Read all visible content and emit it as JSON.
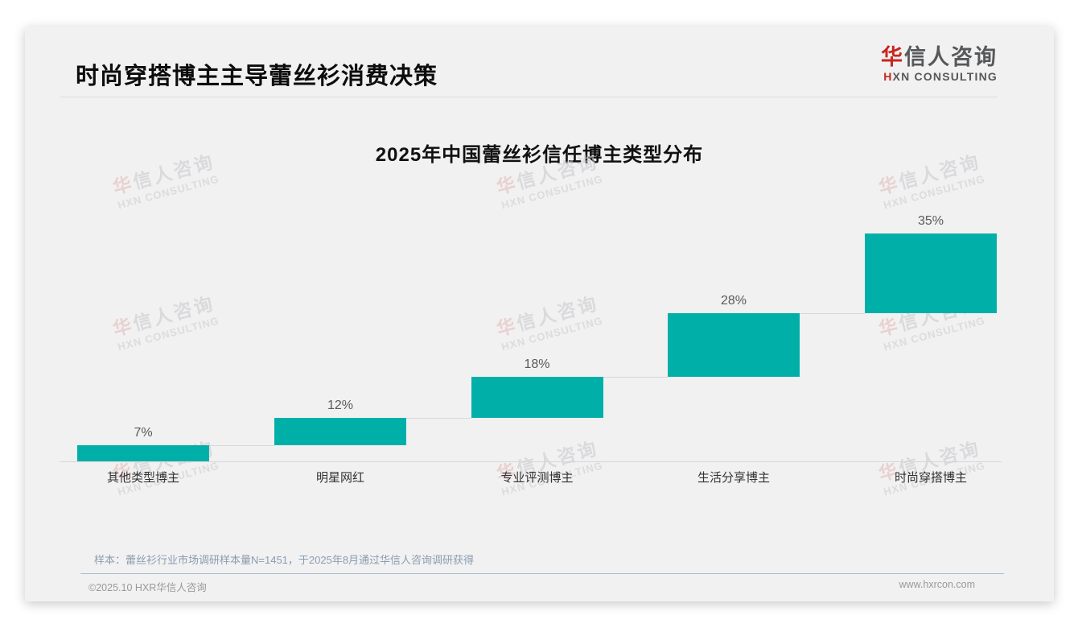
{
  "page": {
    "header": {
      "title": "时尚穿搭博主主导蕾丝衫消费决策"
    },
    "logo": {
      "cn_first": "华",
      "cn_rest": "信人咨询",
      "en_first": "H",
      "en_rest": "XN CONSULTING"
    },
    "watermark": {
      "line1_first": "华",
      "line1_rest": "信人咨询",
      "line2": "HXN CONSULTING"
    },
    "footnote": "样本：蕾丝衫行业市场调研样本量N=1451，于2025年8月通过华信人咨询调研获得",
    "footer": {
      "left": "©2025.10 HXR华信人咨询",
      "right": "www.hxrcon.com"
    }
  },
  "chart_data": {
    "type": "bar",
    "subtype": "waterfall-steps",
    "title": "2025年中国蕾丝衫信任博主类型分布",
    "categories": [
      "其他类型博主",
      "明星网红",
      "专业评测博主",
      "生活分享博主",
      "时尚穿搭博主"
    ],
    "values": [
      7,
      12,
      18,
      28,
      35
    ],
    "labels": [
      "7%",
      "12%",
      "18%",
      "28%",
      "35%"
    ],
    "cumulative_start": [
      0,
      7,
      19,
      37,
      65
    ],
    "unit": "%",
    "ylim": [
      0,
      100
    ],
    "grid": false,
    "legend": "none",
    "bar_color": "#00b0a8",
    "connector_color": "#d7d7d7",
    "value_label_color": "#595959",
    "category_label_color": "#333333"
  }
}
